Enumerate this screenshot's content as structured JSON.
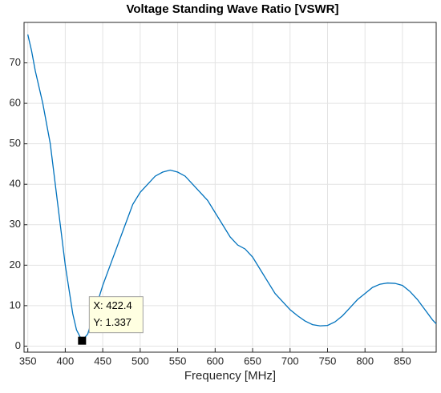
{
  "chart_data": {
    "type": "line",
    "title": "Voltage Standing Wave Ratio [VSWR]",
    "xlabel": "Frequency [MHz]",
    "x": [
      350,
      355,
      360,
      370,
      380,
      390,
      400,
      410,
      415,
      422.4,
      430,
      440,
      450,
      460,
      470,
      480,
      490,
      500,
      510,
      520,
      530,
      540,
      550,
      560,
      570,
      580,
      590,
      600,
      610,
      620,
      630,
      640,
      650,
      660,
      670,
      680,
      690,
      700,
      710,
      720,
      730,
      740,
      750,
      760,
      770,
      780,
      790,
      800,
      810,
      820,
      830,
      840,
      850,
      860,
      870,
      880,
      890,
      895
    ],
    "values": [
      77,
      73,
      68,
      60,
      50,
      35,
      20,
      8,
      4,
      1.337,
      3,
      9,
      15,
      20,
      25,
      30,
      35,
      38,
      40,
      42,
      43,
      43.5,
      43,
      42,
      40,
      38,
      36,
      33,
      30,
      27,
      25,
      24,
      22,
      19,
      16,
      13,
      11,
      9,
      7.5,
      6.2,
      5.3,
      5,
      5.1,
      6,
      7.5,
      9.5,
      11.5,
      13,
      14.5,
      15.3,
      15.6,
      15.5,
      15,
      13.5,
      11.5,
      9,
      6.5,
      5.5
    ],
    "color": "#0072bd",
    "xlim": [
      345,
      895
    ],
    "ylim": [
      -1.5,
      80
    ],
    "xticks": [
      350,
      400,
      450,
      500,
      550,
      600,
      650,
      700,
      750,
      800,
      850
    ],
    "yticks": [
      0,
      10,
      20,
      30,
      40,
      50,
      60,
      70
    ],
    "grid": true,
    "datatip": {
      "x": 422.4,
      "y": 1.337,
      "labels": [
        "X: 422.4",
        "Y: 1.337"
      ]
    }
  }
}
